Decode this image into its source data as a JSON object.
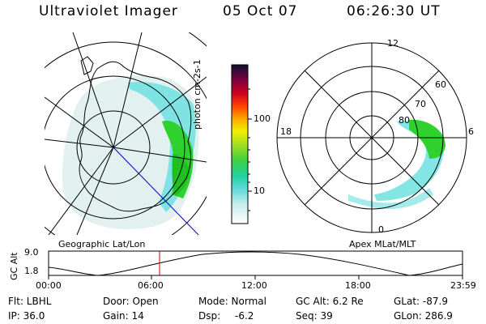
{
  "header": {
    "title": "Ultraviolet Imager",
    "date": "05 Oct 07",
    "time": "06:26:30 UT"
  },
  "left_panel": {
    "caption": "Geographic Lat/Lon"
  },
  "colorbar": {
    "unit_label": "photon cm-2s-1",
    "ticks": [
      "100",
      "10"
    ]
  },
  "right_panel": {
    "caption": "Apex MLat/MLT",
    "mlt_labels": {
      "top": "12",
      "left": "18",
      "right": "6",
      "bottom": "0"
    },
    "mlat_labels": [
      "60",
      "70",
      "80"
    ]
  },
  "altitude_plot": {
    "ylabel": "GC Alt",
    "yticks": [
      "9.0",
      "1.8"
    ],
    "xticks": [
      "00:00",
      "06:00",
      "12:00",
      "18:00",
      "23:59"
    ],
    "current_time_hours": 6.44
  },
  "info": {
    "flt": "Flt: LBHL",
    "ip": "IP: 36.0",
    "door": "Door: Open",
    "gain": "Gain: 14",
    "mode": "Mode: Normal",
    "dsp_label": "Dsp:",
    "dsp_value": "-6.2",
    "gc_alt": "GC Alt: 6.2 Re",
    "seq": "Seq: 39",
    "glat": "GLat: -87.9",
    "glon": "GLon: 286.9"
  },
  "colors": {
    "green": "#2fd12f",
    "cyan": "#6fe0e0",
    "time_marker": "#cc0000",
    "longitude_line": "#0000cc"
  }
}
